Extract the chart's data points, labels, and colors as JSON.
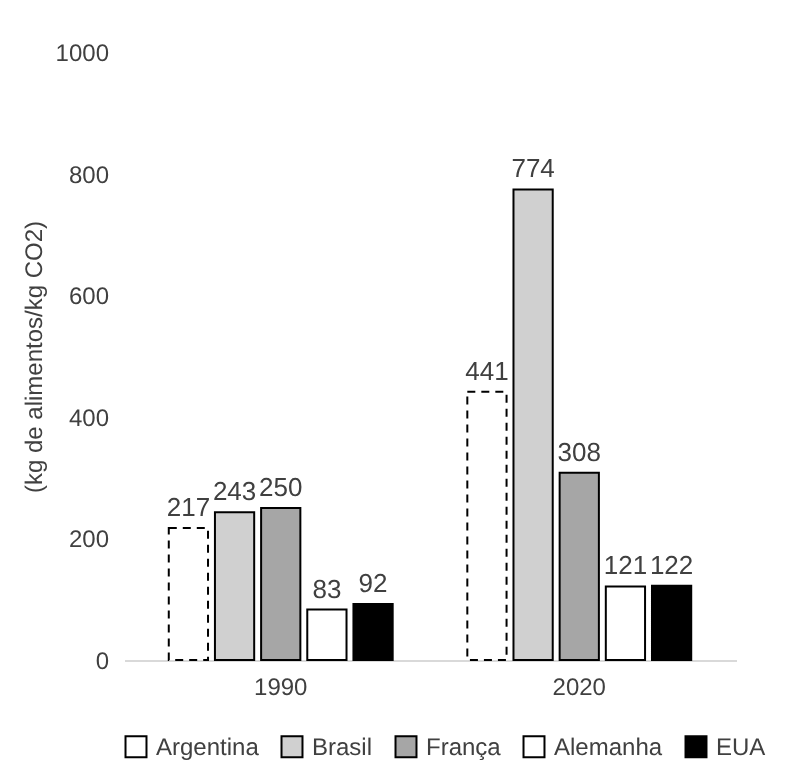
{
  "chart_data": {
    "type": "bar",
    "ylabel": "(kg de alimentos/kg CO2)",
    "categories": [
      "1990",
      "2020"
    ],
    "series": [
      {
        "name": "Argentina",
        "color": "#ffffff",
        "line_style": "dashed",
        "values": [
          217,
          441
        ]
      },
      {
        "name": "Brasil",
        "color": "#d0d0d0",
        "values": [
          243,
          774
        ]
      },
      {
        "name": "França",
        "color": "#a6a6a6",
        "values": [
          250,
          308
        ]
      },
      {
        "name": "Alemanha",
        "color": "#ffffff",
        "values": [
          83,
          121
        ]
      },
      {
        "name": "EUA",
        "color": "#000000",
        "values": [
          92,
          122
        ]
      }
    ],
    "ylim": [
      0,
      1000
    ],
    "yticks": [
      0,
      200,
      400,
      600,
      800,
      1000
    ],
    "grid": false,
    "legend": "bottom",
    "data_labels": true
  }
}
